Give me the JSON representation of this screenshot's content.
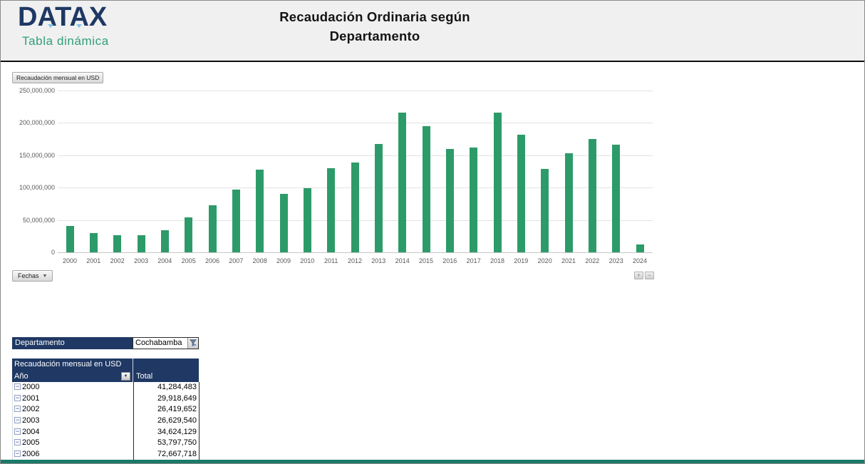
{
  "header": {
    "logo": "DATAX",
    "logo_subtitle": "Tabla dinámica",
    "title_line1": "Recaudación Ordinaria según",
    "title_line2": "Departamento"
  },
  "chart": {
    "field_button": "Recaudación mensual en USD",
    "axis_button": "Fechas",
    "zoom_in": "+",
    "zoom_out": "−",
    "bar_color": "#2d9b69",
    "y_ticks": [
      "250,000,000",
      "200,000,000",
      "150,000,000",
      "100,000,000",
      "50,000,000",
      "0"
    ]
  },
  "chart_data": {
    "type": "bar",
    "title": "Recaudación Ordinaria según Departamento",
    "ylabel": "Recaudación mensual en USD",
    "xlabel": "Fechas (Año)",
    "ylim": [
      0,
      250000000
    ],
    "grid": true,
    "legend": false,
    "categories": [
      "2000",
      "2001",
      "2002",
      "2003",
      "2004",
      "2005",
      "2006",
      "2007",
      "2008",
      "2009",
      "2010",
      "2011",
      "2012",
      "2013",
      "2014",
      "2015",
      "2016",
      "2017",
      "2018",
      "2019",
      "2020",
      "2021",
      "2022",
      "2023",
      "2024"
    ],
    "values": [
      41284483,
      29918649,
      26419652,
      26629540,
      34624129,
      53797750,
      72667718,
      97000000,
      127500000,
      90000000,
      99500000,
      130000000,
      138500000,
      167500000,
      216000000,
      195000000,
      160000000,
      162000000,
      216000000,
      181500000,
      129000000,
      153500000,
      175500000,
      166000000,
      12500000
    ]
  },
  "filter": {
    "label": "Departamento",
    "value": "Cochabamba"
  },
  "table": {
    "header_title": "Recaudación mensual en USD",
    "col_row": "Año",
    "col_total": "Total",
    "rows": [
      {
        "year": "2000",
        "total": "41,284,483"
      },
      {
        "year": "2001",
        "total": "29,918,649"
      },
      {
        "year": "2002",
        "total": "26,419,652"
      },
      {
        "year": "2003",
        "total": "26,629,540"
      },
      {
        "year": "2004",
        "total": "34,624,129"
      },
      {
        "year": "2005",
        "total": "53,797,750"
      },
      {
        "year": "2006",
        "total": "72,667,718"
      }
    ]
  },
  "icons": {
    "dropdown_arrow": "▼",
    "collapse_minus": "−"
  }
}
